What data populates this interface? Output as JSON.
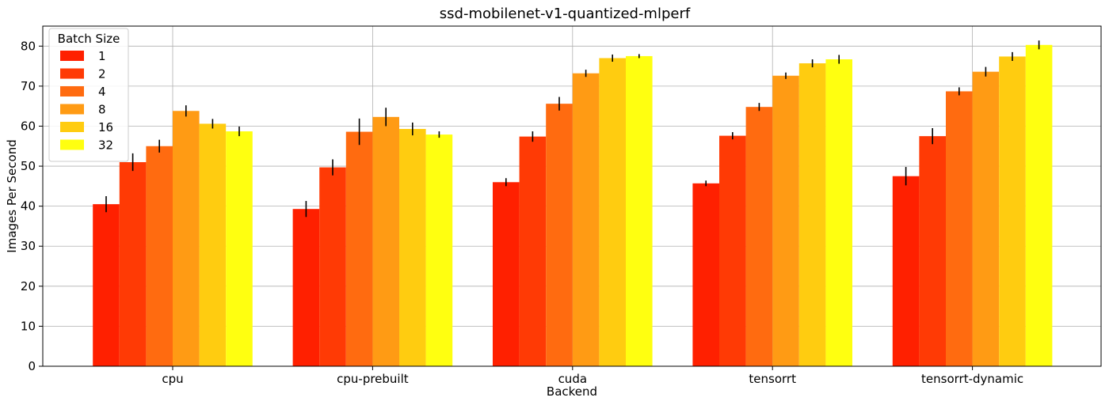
{
  "chart_data": {
    "type": "bar",
    "title": "ssd-mobilenet-v1-quantized-mlperf",
    "xlabel": "Backend",
    "ylabel": "Images Per Second",
    "ylim": [
      0,
      85
    ],
    "yticks": [
      0,
      10,
      20,
      30,
      40,
      50,
      60,
      70,
      80
    ],
    "grid": true,
    "legend": {
      "title": "Batch Size",
      "placement": "top-left"
    },
    "categories": [
      "cpu",
      "cpu-prebuilt",
      "cuda",
      "tensorrt",
      "tensorrt-dynamic"
    ],
    "series": [
      {
        "name": "1",
        "color": "#ff2000",
        "values": [
          40.5,
          39.3,
          46.0,
          45.7,
          47.5
        ],
        "errors": [
          2.0,
          2.0,
          1.0,
          0.7,
          2.3
        ]
      },
      {
        "name": "2",
        "color": "#ff3a05",
        "values": [
          51.0,
          49.7,
          57.4,
          57.6,
          57.5
        ],
        "errors": [
          2.2,
          2.0,
          1.3,
          0.9,
          2.0
        ]
      },
      {
        "name": "4",
        "color": "#ff6b10",
        "values": [
          55.0,
          58.6,
          65.6,
          64.8,
          68.7
        ],
        "errors": [
          1.6,
          3.3,
          1.7,
          1.0,
          1.0
        ]
      },
      {
        "name": "8",
        "color": "#ff9b14",
        "values": [
          63.8,
          62.3,
          73.2,
          72.6,
          73.6
        ],
        "errors": [
          1.4,
          2.3,
          0.9,
          0.8,
          1.2
        ]
      },
      {
        "name": "16",
        "color": "#ffcc10",
        "values": [
          60.6,
          59.3,
          77.0,
          75.7,
          77.4
        ],
        "errors": [
          1.2,
          1.6,
          0.9,
          1.0,
          1.1
        ]
      },
      {
        "name": "32",
        "color": "#ffff10",
        "values": [
          58.7,
          57.9,
          77.5,
          76.7,
          80.3
        ],
        "errors": [
          1.2,
          0.8,
          0.5,
          1.1,
          1.1
        ]
      }
    ]
  }
}
